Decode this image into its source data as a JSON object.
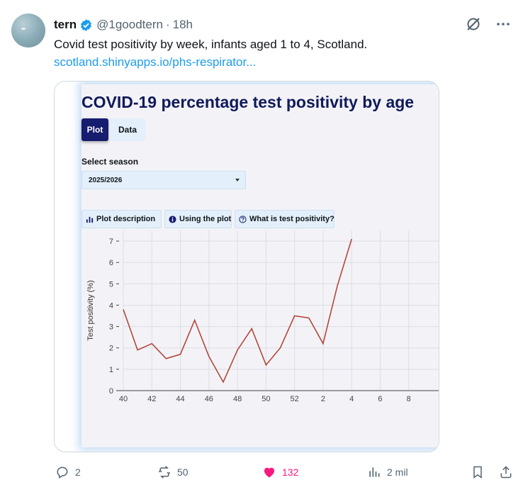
{
  "tweet": {
    "display_name": "tern",
    "handle": "@1goodtern",
    "separator": "·",
    "time": "18h",
    "text": "Covid test positivity by week, infants aged 1 to 4, Scotland.",
    "link_text": "scotland.shinyapps.io/phs-respirator..."
  },
  "app": {
    "title": "COVID-19 percentage test positivity by age",
    "tabs": [
      {
        "label": "Plot",
        "active": true
      },
      {
        "label": "Data",
        "active": false
      }
    ],
    "season_label": "Select season",
    "season_value": "2025/2026",
    "info_buttons": [
      "Plot description",
      "Using the plot",
      "What is test positivity?"
    ]
  },
  "chart_data": {
    "type": "line",
    "ylabel": "Test positivity (%)",
    "xlabel": "",
    "x_tick_labels": [
      "40",
      "42",
      "44",
      "46",
      "48",
      "50",
      "52",
      "2",
      "4",
      "6",
      "8"
    ],
    "y_tick_labels": [
      "0",
      "1",
      "2",
      "3",
      "4",
      "5",
      "6",
      "7"
    ],
    "ylim": [
      0,
      7.5
    ],
    "grid": true,
    "line_color": "#b5463a",
    "series": [
      {
        "x": [
          "40",
          "41",
          "42",
          "43",
          "44",
          "45",
          "46",
          "47",
          "48",
          "49",
          "50",
          "51",
          "52",
          "1",
          "2",
          "3",
          "4"
        ],
        "values": [
          3.8,
          1.9,
          2.2,
          1.5,
          1.7,
          3.3,
          1.6,
          0.4,
          1.9,
          2.9,
          1.2,
          2.0,
          3.5,
          3.4,
          2.2,
          4.9,
          7.1
        ]
      }
    ]
  },
  "actions": {
    "replies": "2",
    "reposts": "50",
    "likes": "132",
    "views": "2 mil"
  },
  "colors": {
    "accent": "#1d9bf0",
    "like": "#f91880",
    "app_title": "#101a5a",
    "tab_active": "#161c6e"
  }
}
